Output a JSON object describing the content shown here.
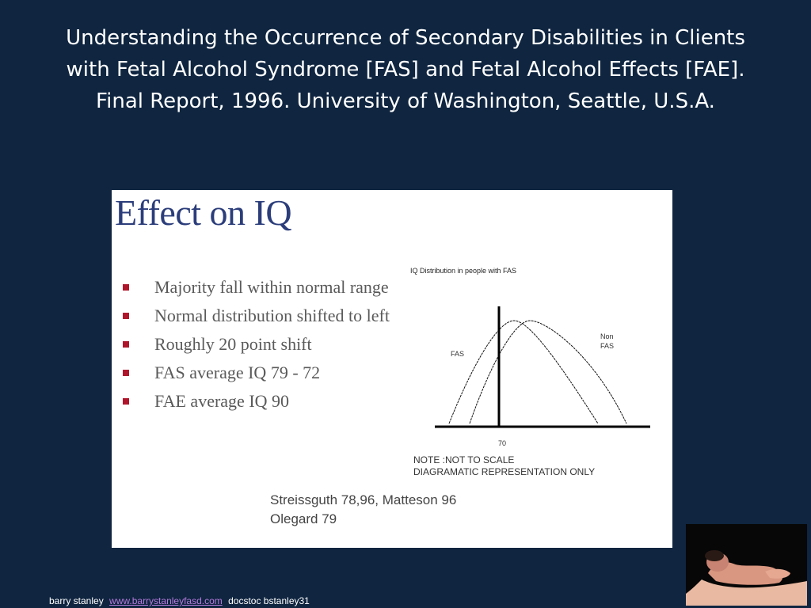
{
  "slide": {
    "title": "Understanding the Occurrence of Secondary Disabilities in Clients with Fetal Alcohol Syndrome [FAS] and Fetal Alcohol Effects [FAE]. Final Report, 1996. University of Washington, Seattle, U.S.A."
  },
  "panel": {
    "heading": "Effect on IQ",
    "bullets": [
      "Majority fall within normal range",
      "Normal distribution shifted to left",
      "Roughly 20 point shift",
      "FAS average IQ 79 - 72",
      "FAE average IQ 90"
    ],
    "bullet_color": "#b0162b",
    "diagram": {
      "title": "IQ Distribution in people with FAS",
      "curve_fas_label": "FAS",
      "curve_nonfas_label_line1": "Non",
      "curve_nonfas_label_line2": "FAS",
      "marker_label": "70"
    },
    "note_line1": "NOTE :NOT TO SCALE",
    "note_line2": "DIAGRAMATIC REPRESENTATION ONLY",
    "ref_line1": "Streissguth 78,96, Matteson 96",
    "ref_line2": "Olegard 79"
  },
  "footer": {
    "author": "barry stanley",
    "link": "www.barrystanleyfasd.com",
    "extra": "docstoc bstanley31",
    "link_color": "#b57bdc"
  },
  "colors": {
    "background": "#0f2540",
    "heading": "#2b3d7a"
  },
  "image": {
    "alt": "baby-in-hands-photo"
  }
}
